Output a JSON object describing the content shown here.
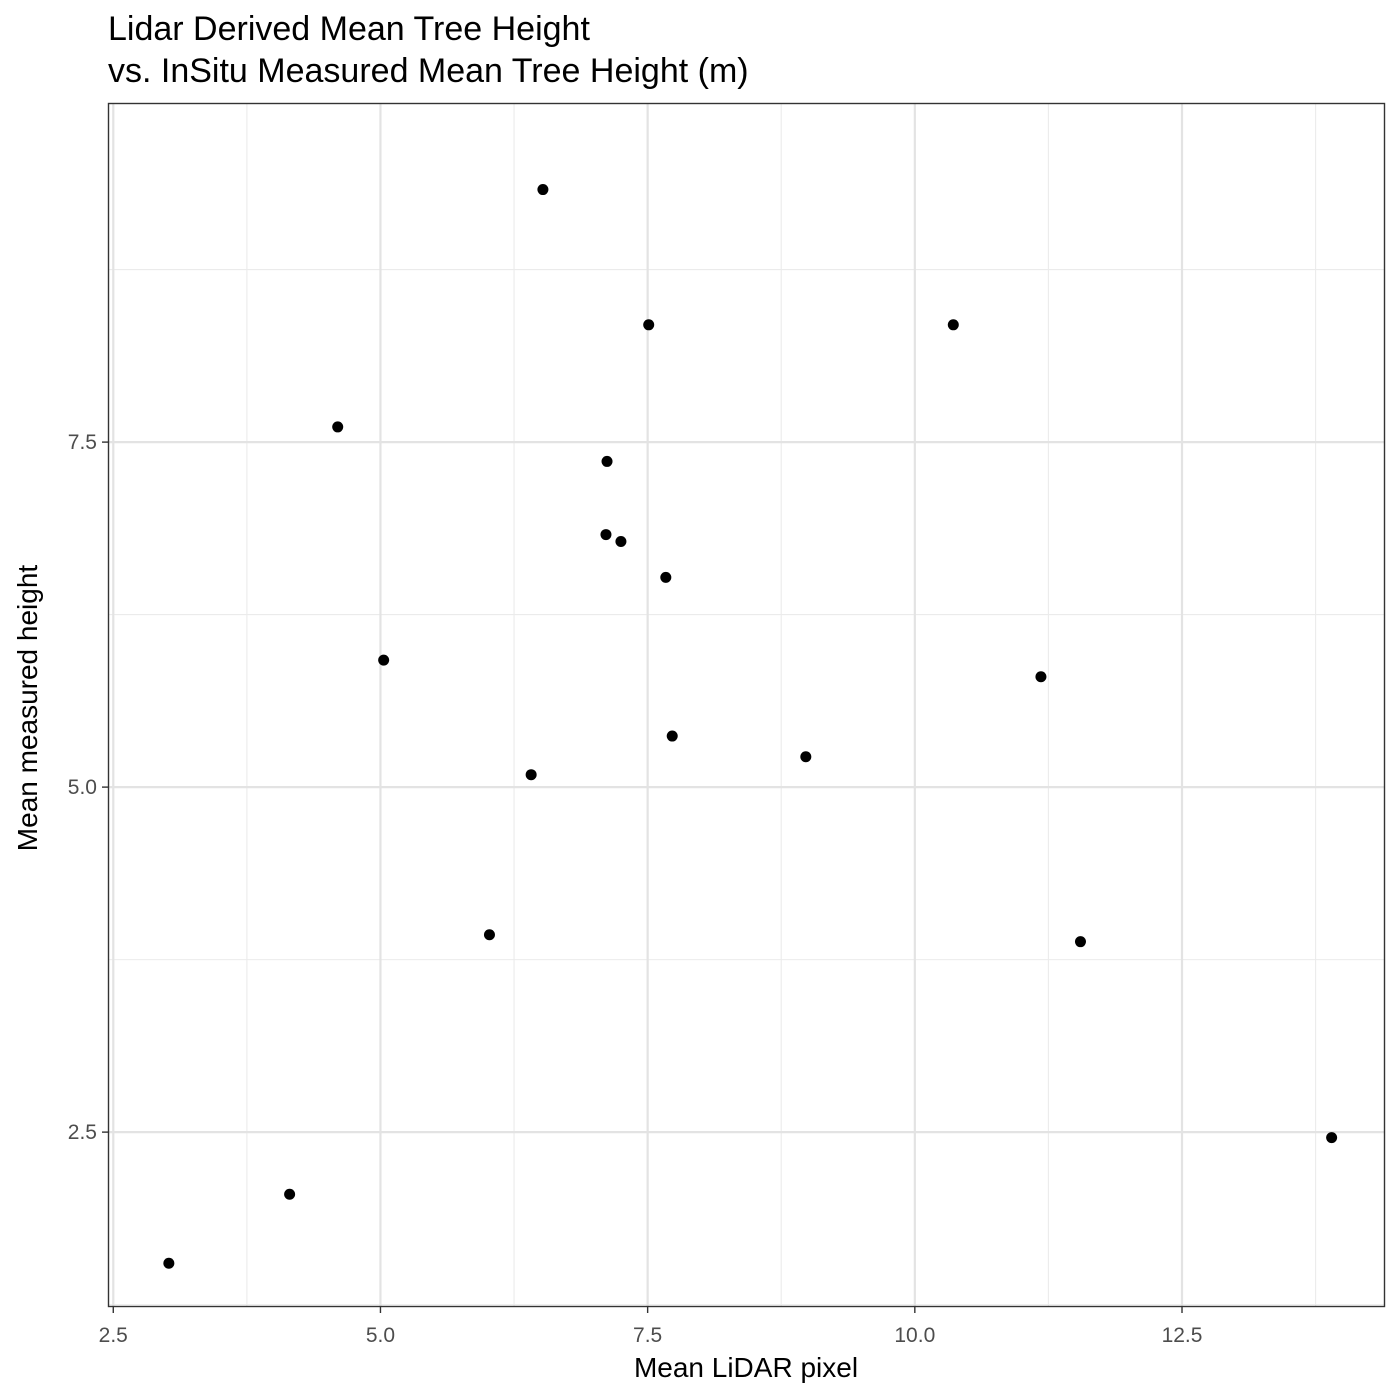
{
  "chart_data": {
    "type": "scatter",
    "title": "Lidar Derived Mean Tree Height",
    "subtitle": "vs. InSitu Measured Mean Tree Height (m)",
    "xlabel": "Mean LiDAR pixel",
    "ylabel": "Mean measured height",
    "xlim": [
      2.46,
      14.39
    ],
    "ylim": [
      1.24,
      9.95
    ],
    "x_ticks": [
      2.5,
      5.0,
      7.5,
      10.0,
      12.5
    ],
    "x_tick_labels": [
      "2.5",
      "5.0",
      "7.5",
      "10.0",
      "12.5"
    ],
    "y_ticks": [
      2.5,
      5.0,
      7.5
    ],
    "y_tick_labels": [
      "2.5",
      "5.0",
      "7.5"
    ],
    "grid": true,
    "point_color": "#000000",
    "points": [
      {
        "x": 3.02,
        "y": 1.55
      },
      {
        "x": 4.15,
        "y": 2.05
      },
      {
        "x": 4.6,
        "y": 7.61
      },
      {
        "x": 5.03,
        "y": 5.92
      },
      {
        "x": 6.02,
        "y": 3.93
      },
      {
        "x": 6.41,
        "y": 5.09
      },
      {
        "x": 6.52,
        "y": 9.33
      },
      {
        "x": 7.11,
        "y": 6.83
      },
      {
        "x": 7.12,
        "y": 7.36
      },
      {
        "x": 7.25,
        "y": 6.78
      },
      {
        "x": 7.51,
        "y": 8.35
      },
      {
        "x": 7.67,
        "y": 6.52
      },
      {
        "x": 7.73,
        "y": 5.37
      },
      {
        "x": 8.98,
        "y": 5.22
      },
      {
        "x": 10.36,
        "y": 8.35
      },
      {
        "x": 11.18,
        "y": 5.8
      },
      {
        "x": 11.55,
        "y": 3.88
      },
      {
        "x": 13.9,
        "y": 2.46
      }
    ]
  }
}
